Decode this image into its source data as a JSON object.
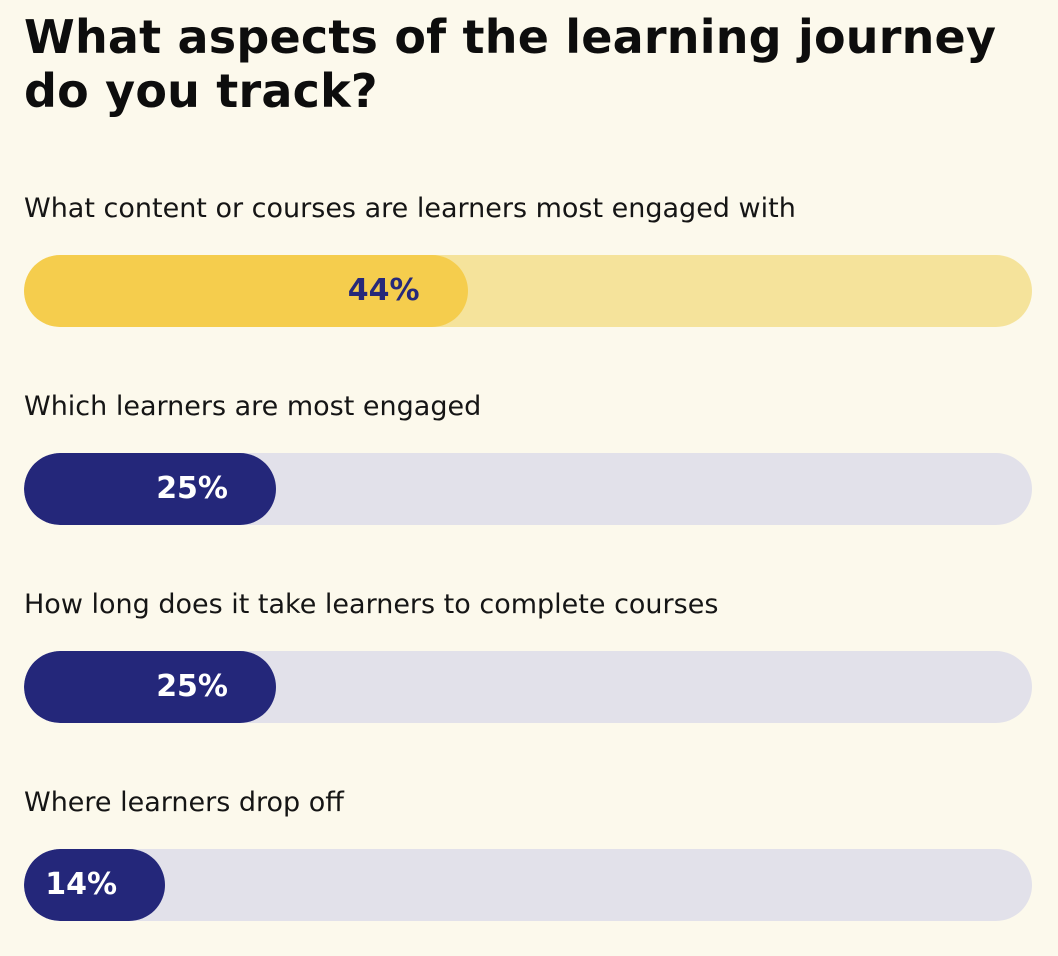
{
  "title": "What aspects of the learning journey do you track?",
  "colors": {
    "background": "#fcf9ec",
    "highlight_fill": "#f5cd4d",
    "highlight_track": "#f5e39b",
    "highlight_text": "#27297a",
    "primary_fill": "#24277a",
    "primary_track": "#e2e1ea",
    "primary_text": "#ffffff"
  },
  "chart_data": {
    "type": "bar",
    "orientation": "horizontal",
    "title": "What aspects of the learning journey do you track?",
    "categories": [
      "What content or courses are learners most engaged with",
      "Which learners are most engaged",
      "How long does it take learners to complete courses",
      "Where learners drop off"
    ],
    "values": [
      44,
      25,
      25,
      14
    ],
    "value_labels": [
      "44%",
      "25%",
      "25%",
      "14%"
    ],
    "highlighted": [
      true,
      false,
      false,
      false
    ],
    "xlim": [
      0,
      100
    ],
    "grid": false,
    "legend": "none"
  }
}
